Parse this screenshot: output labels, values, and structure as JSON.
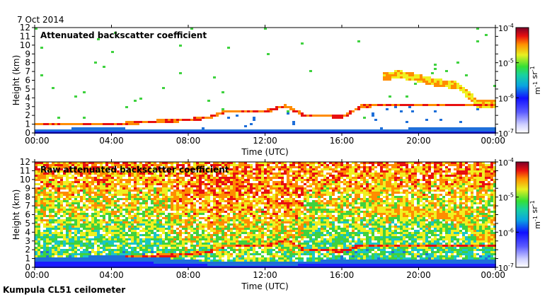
{
  "date_label": "7 Oct 2014",
  "instrument_label": "Kumpula CL51 ceilometer",
  "colors": {
    "clear": "#ffffff",
    "low": "#1a1aff",
    "boundary": "#1e6fd9",
    "mid": "#19c6c6",
    "green": "#3fd23f",
    "yellow": "#f0f020",
    "orange": "#ff8c00",
    "red": "#e81010",
    "dark": "#7a0028"
  },
  "chart_data": [
    {
      "type": "heatmap",
      "title": "Attenuated backscatter coefficient",
      "xlabel": "Time (UTC)",
      "ylabel": "Height (km)",
      "x_ticks": [
        "00:00",
        "04:00",
        "08:00",
        "12:00",
        "16:00",
        "20:00",
        "00:00"
      ],
      "x_tick_hours": [
        0,
        4,
        8,
        12,
        16,
        20,
        24
      ],
      "xlim": [
        0,
        24
      ],
      "y_ticks": [
        0,
        1,
        2,
        3,
        4,
        5,
        6,
        7,
        8,
        9,
        10,
        11,
        12
      ],
      "ylim": [
        0,
        12
      ],
      "colorbar": {
        "scale": "log",
        "range": [
          1e-07,
          0.0001
        ],
        "tick_values": [
          1e-07,
          1e-06,
          1e-05,
          0.0001
        ],
        "tick_labels": [
          "10",
          "10",
          "10",
          "10"
        ],
        "tick_exponents": [
          "-7",
          "-6",
          "-5",
          "-4"
        ],
        "unit_base": [
          "m",
          "sr"
        ],
        "unit_exponents": [
          "-1",
          "-1"
        ]
      },
      "features": {
        "boundary_layer": [
          [
            0,
            0.55
          ],
          [
            3,
            0.7
          ],
          [
            6,
            0.6
          ],
          [
            9,
            0.5
          ],
          [
            12,
            0.45
          ],
          [
            15,
            0.5
          ],
          [
            18,
            0.6
          ],
          [
            21,
            0.7
          ],
          [
            24,
            0.7
          ]
        ],
        "cloud_base": [
          [
            0,
            1.1
          ],
          [
            4,
            1.1
          ],
          [
            6,
            1.4
          ],
          [
            8,
            1.6
          ],
          [
            9,
            1.9
          ],
          [
            10,
            2.6
          ],
          [
            11,
            2.6
          ],
          [
            12,
            2.6
          ],
          [
            13,
            3.2
          ],
          [
            14,
            2.1
          ],
          [
            16,
            2.0
          ],
          [
            17,
            3.2
          ],
          [
            18,
            3.3
          ]
        ],
        "upper_cloud": [
          [
            18,
            6.5
          ],
          [
            19,
            6.8
          ],
          [
            20,
            6.3
          ],
          [
            21,
            5.8
          ],
          [
            22,
            5.5
          ],
          [
            23,
            3.5
          ],
          [
            24,
            3.4
          ]
        ]
      }
    },
    {
      "type": "heatmap",
      "title": "Raw attenuated backscatter coefficient",
      "xlabel": "Time (UTC)",
      "ylabel": "Height (km)",
      "x_ticks": [
        "00:00",
        "04:00",
        "08:00",
        "12:00",
        "16:00",
        "20:00",
        "00:00"
      ],
      "x_tick_hours": [
        0,
        4,
        8,
        12,
        16,
        20,
        24
      ],
      "xlim": [
        0,
        24
      ],
      "y_ticks": [
        0,
        1,
        2,
        3,
        4,
        5,
        6,
        7,
        8,
        9,
        10,
        11,
        12
      ],
      "ylim": [
        0,
        12
      ],
      "colorbar": {
        "scale": "log",
        "range": [
          1e-07,
          0.0001
        ],
        "tick_values": [
          1e-07,
          1e-06,
          1e-05,
          0.0001
        ],
        "tick_labels": [
          "10",
          "10",
          "10",
          "10"
        ],
        "tick_exponents": [
          "-7",
          "-6",
          "-5",
          "-4"
        ],
        "unit_base": [
          "m",
          "sr"
        ],
        "unit_exponents": [
          "-1",
          "-1"
        ]
      },
      "features": {
        "boundary_layer": [
          [
            0,
            1.3
          ],
          [
            4,
            1.4
          ],
          [
            6,
            1.3
          ],
          [
            9,
            0.8
          ],
          [
            12,
            0.7
          ],
          [
            15,
            0.9
          ],
          [
            18,
            1.0
          ],
          [
            21,
            1.0
          ],
          [
            24,
            1.0
          ]
        ],
        "cloud_base": [
          [
            0,
            1.1
          ],
          [
            4,
            1.1
          ],
          [
            6,
            1.4
          ],
          [
            8,
            1.6
          ],
          [
            9,
            1.9
          ],
          [
            10,
            2.6
          ],
          [
            12,
            2.6
          ],
          [
            13,
            3.2
          ],
          [
            14,
            2.1
          ],
          [
            16,
            2.0
          ],
          [
            17,
            2.6
          ]
        ],
        "upper_cloud": [
          [
            17.5,
            6.8
          ],
          [
            18.5,
            6.3
          ],
          [
            19.5,
            6.6
          ],
          [
            20.5,
            6.2
          ],
          [
            21.5,
            5.9
          ],
          [
            22.5,
            5.4
          ],
          [
            23,
            3.5
          ],
          [
            24,
            3.4
          ]
        ]
      }
    }
  ]
}
